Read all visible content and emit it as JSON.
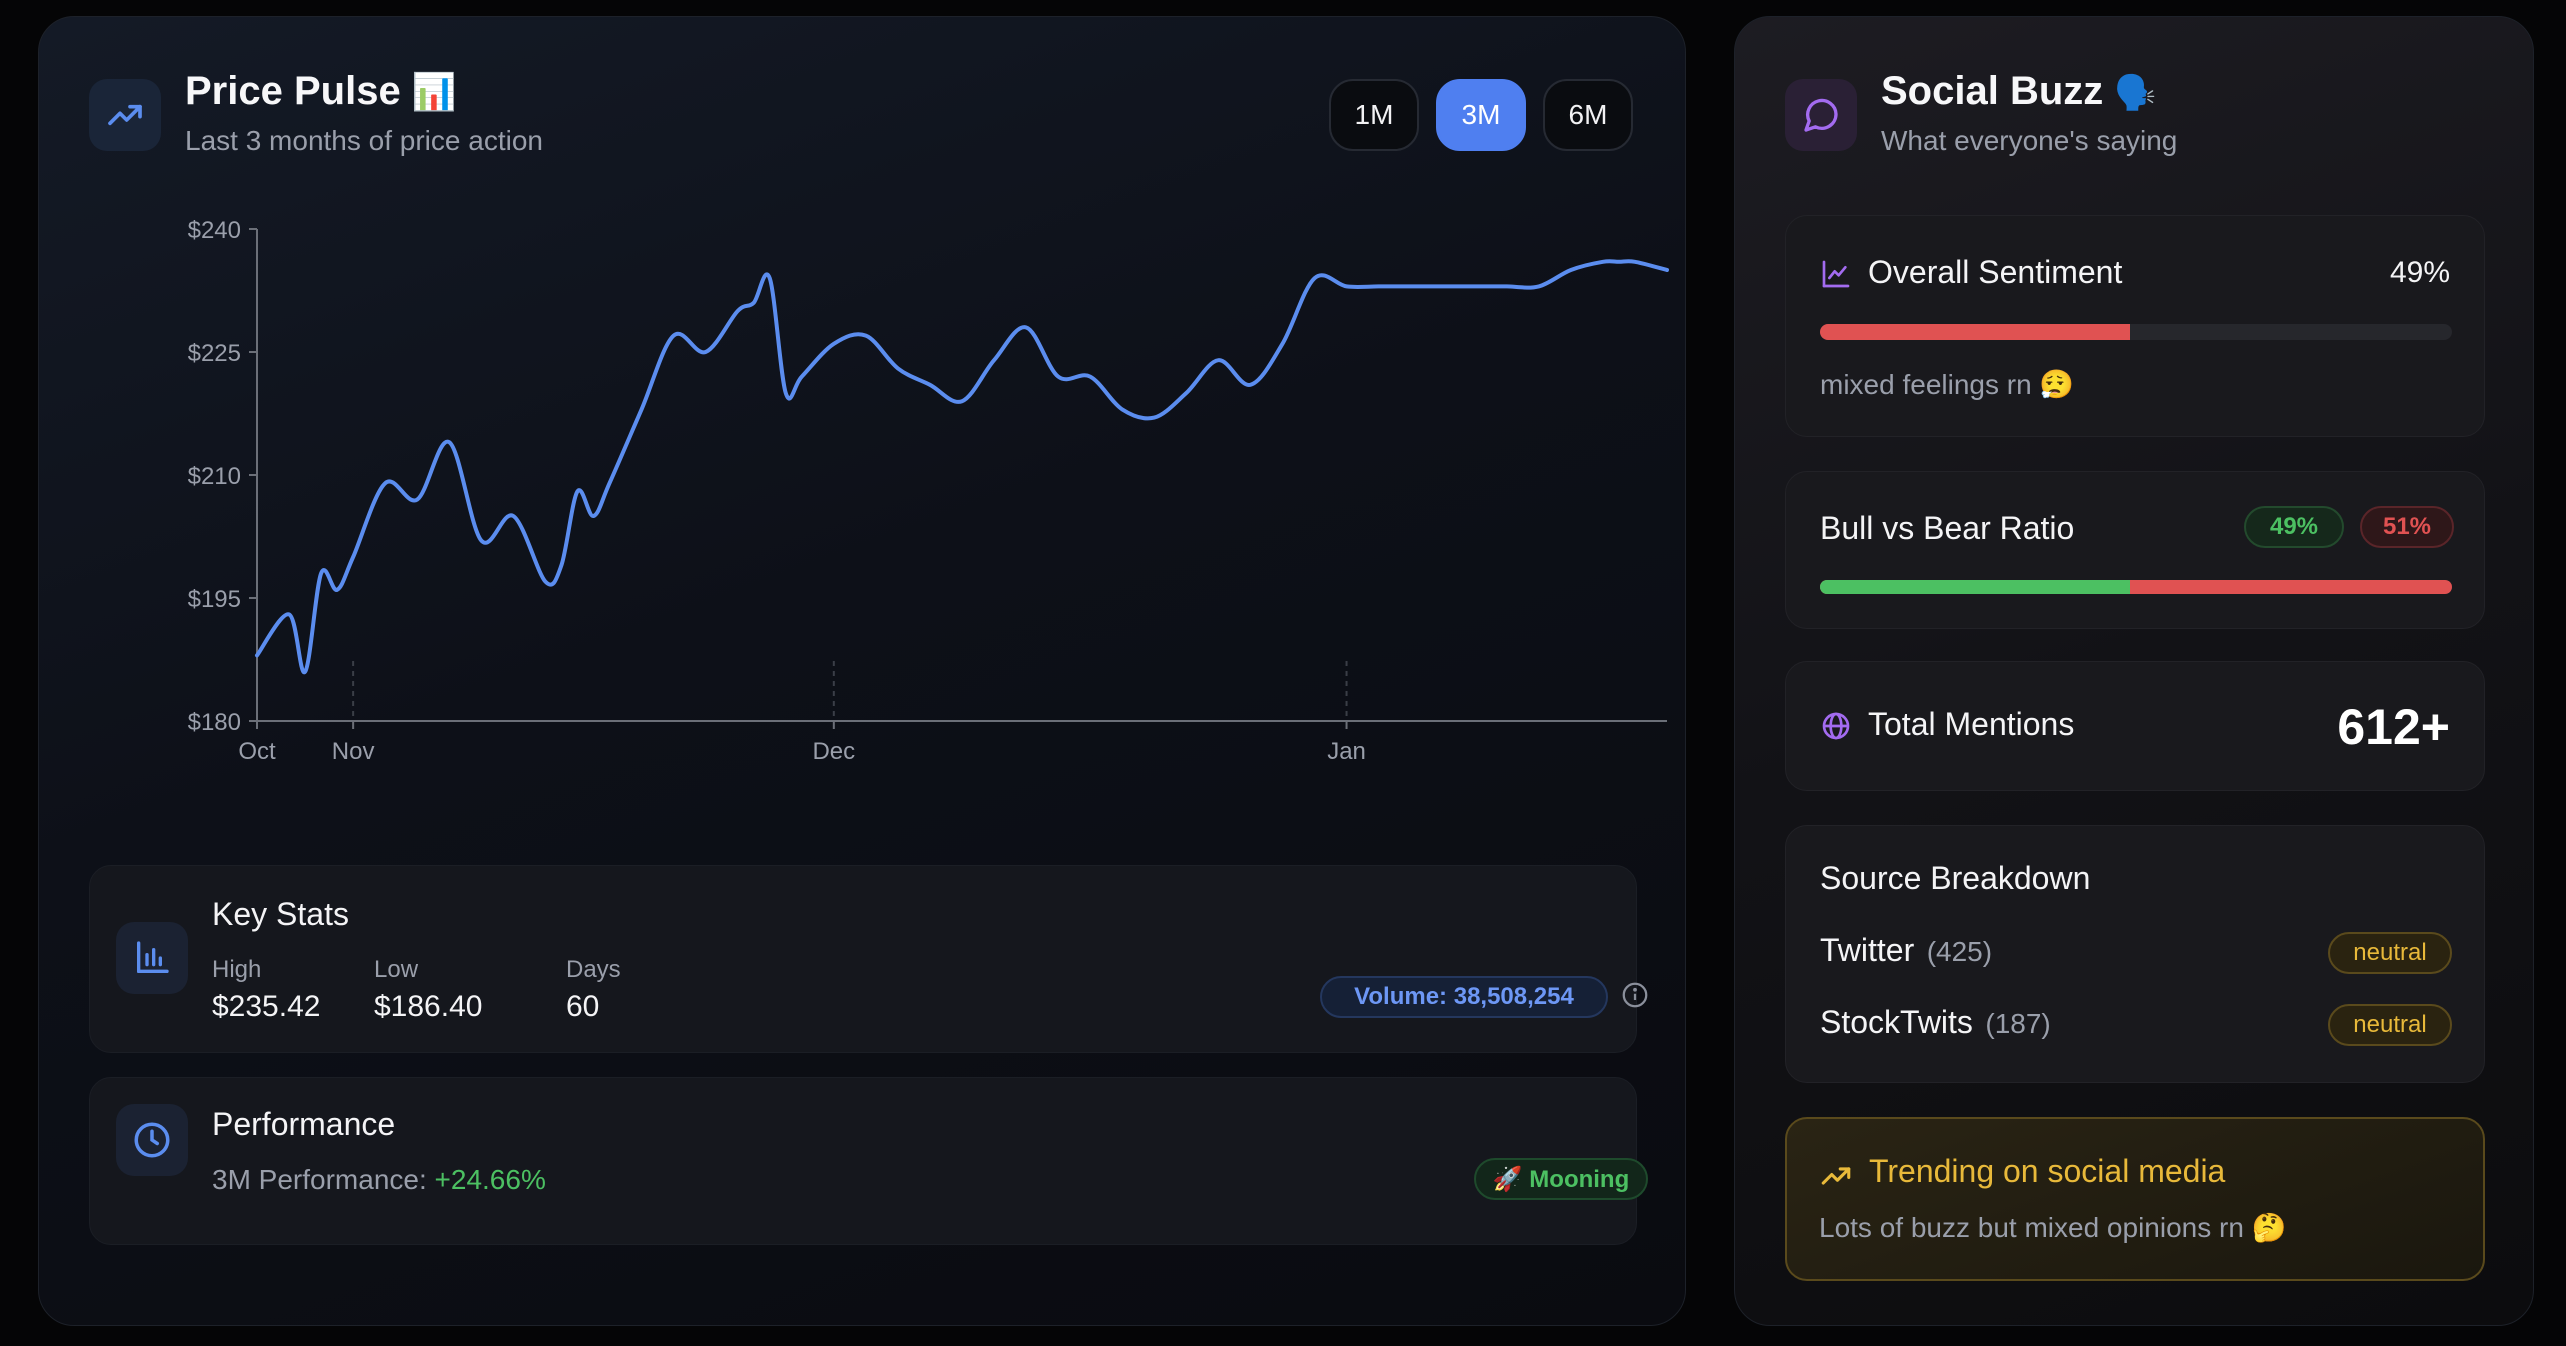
{
  "price_pulse": {
    "title": "Price Pulse",
    "title_emoji": "📊",
    "subtitle": "Last 3 months of price action",
    "header_icon": "trending-up-icon",
    "ranges": [
      {
        "label": "1M",
        "active": false
      },
      {
        "label": "3M",
        "active": true
      },
      {
        "label": "6M",
        "active": false
      }
    ]
  },
  "chart_data": {
    "type": "line",
    "y_ticks": [
      "$240",
      "$225",
      "$210",
      "$195",
      "$180"
    ],
    "ylim": [
      180,
      240
    ],
    "x_ticks": [
      {
        "label": "Oct",
        "x": 0
      },
      {
        "label": "Nov",
        "x": 3
      },
      {
        "label": "Dec",
        "x": 18
      },
      {
        "label": "Jan",
        "x": 34
      }
    ],
    "xlim": [
      0,
      44
    ],
    "line_color": "#5b8def",
    "series": [
      {
        "x": [
          0,
          1,
          1.5,
          2,
          2.5,
          3,
          4,
          5,
          6,
          7,
          8,
          9,
          9.5,
          10,
          10.5,
          11,
          12,
          13,
          14,
          15,
          15.5,
          16,
          16.5,
          17,
          18,
          19,
          20,
          21,
          22,
          23,
          24,
          25,
          26,
          27,
          28,
          29,
          30,
          31,
          32,
          33,
          34,
          35,
          36,
          37,
          38,
          38.5,
          39,
          40,
          41,
          42,
          42.5,
          43,
          44
        ],
        "values": [
          188,
          193,
          186,
          198,
          196,
          200,
          209,
          207,
          214,
          202,
          205,
          197,
          199,
          208,
          205,
          209,
          218,
          227,
          225,
          230,
          231,
          234,
          220,
          222,
          226,
          227,
          223,
          221,
          219,
          224,
          228,
          222,
          222,
          218,
          217,
          220,
          224,
          221,
          226,
          234,
          233,
          233,
          233,
          233,
          233,
          233,
          233,
          233,
          235,
          236,
          236,
          236,
          235
        ]
      }
    ]
  },
  "key_stats": {
    "title": "Key Stats",
    "icon": "bar-chart-icon",
    "items": [
      {
        "label": "High",
        "value": "$235.42"
      },
      {
        "label": "Low",
        "value": "$186.40"
      },
      {
        "label": "Days",
        "value": "60"
      }
    ],
    "volume": "Volume: 38,508,254",
    "info_icon": "info-icon"
  },
  "performance": {
    "title": "Performance",
    "icon": "clock-icon",
    "label": "3M Performance:",
    "value": "+24.66%",
    "badge": "🚀 Mooning"
  },
  "social_buzz": {
    "title": "Social Buzz",
    "title_emoji": "🗣️",
    "subtitle": "What everyone's saying",
    "header_icon": "message-circle-icon"
  },
  "sentiment": {
    "title": "Overall Sentiment",
    "icon": "line-chart-icon",
    "value": "49%",
    "fraction": 0.49,
    "note": "mixed feelings rn 😮‍💨"
  },
  "bull_bear": {
    "title": "Bull vs Bear Ratio",
    "bull": "49%",
    "bear": "51%",
    "bull_fraction": 0.49
  },
  "mentions": {
    "title": "Total Mentions",
    "icon": "globe-icon",
    "value": "612+"
  },
  "sources": {
    "title": "Source Breakdown",
    "items": [
      {
        "name": "Twitter",
        "count": "(425)",
        "badge": "neutral"
      },
      {
        "name": "StockTwits",
        "count": "(187)",
        "badge": "neutral"
      }
    ]
  },
  "trending": {
    "title": "Trending on social media",
    "icon": "trending-up-icon",
    "text": "Lots of buzz but mixed opinions rn 🤔"
  },
  "colors": {
    "accent": "#4f7ff0",
    "bull": "#4cc062",
    "bear": "#e05252",
    "gold": "#e8b93a",
    "purple": "#a36bf0"
  }
}
